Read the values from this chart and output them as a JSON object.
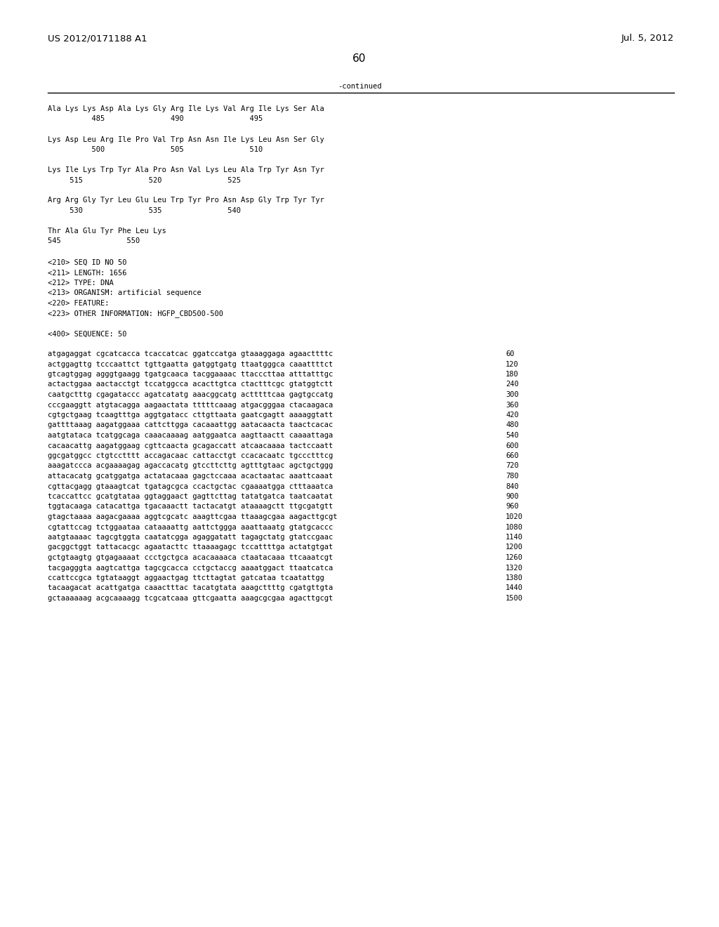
{
  "header_left": "US 2012/0171188 A1",
  "header_right": "Jul. 5, 2012",
  "page_number": "60",
  "continued_label": "-continued",
  "background_color": "#ffffff",
  "text_color": "#000000",
  "protein_lines": [
    "Ala Lys Lys Asp Ala Lys Gly Arg Ile Lys Val Arg Ile Lys Ser Ala",
    "          485               490               495",
    "",
    "Lys Asp Leu Arg Ile Pro Val Trp Asn Asn Ile Lys Leu Asn Ser Gly",
    "          500               505               510",
    "",
    "Lys Ile Lys Trp Tyr Ala Pro Asn Val Lys Leu Ala Trp Tyr Asn Tyr",
    "     515               520               525",
    "",
    "Arg Arg Gly Tyr Leu Glu Leu Trp Tyr Pro Asn Asp Gly Trp Tyr Tyr",
    "     530               535               540",
    "",
    "Thr Ala Glu Tyr Phe Leu Lys",
    "545               550"
  ],
  "seq_info_lines": [
    "<210> SEQ ID NO 50",
    "<211> LENGTH: 1656",
    "<212> TYPE: DNA",
    "<213> ORGANISM: artificial sequence",
    "<220> FEATURE:",
    "<223> OTHER INFORMATION: HGFP_CBD500-500",
    "",
    "<400> SEQUENCE: 50"
  ],
  "dna_lines": [
    [
      "atgagaggat cgcatcacca tcaccatcac ggatccatga gtaaaggaga agaacttttc",
      "60"
    ],
    [
      "actggagttg tcccaattct tgttgaatta gatggtgatg ttaatgggca caaattttct",
      "120"
    ],
    [
      "gtcagtggag agggtgaagg tgatgcaaca tacggaaaac ttacccttaa atttatttgc",
      "180"
    ],
    [
      "actactggaa aactacctgt tccatggcca acacttgtca ctactttcgc gtatggtctt",
      "240"
    ],
    [
      "caatgctttg cgagataccc agatcatatg aaacggcatg actttttcaa gagtgccatg",
      "300"
    ],
    [
      "cccgaaggtt atgtacagga aagaactata tttttcaaag atgacgggaa ctacaagaca",
      "360"
    ],
    [
      "cgtgctgaag tcaagtttga aggtgatacc cttgttaata gaatcgagtt aaaaggtatt",
      "420"
    ],
    [
      "gattttaaag aagatggaaa cattcttgga cacaaattgg aatacaacta taactcacac",
      "480"
    ],
    [
      "aatgtataca tcatggcaga caaacaaaag aatggaatca aagttaactt caaaattaga",
      "540"
    ],
    [
      "cacaacattg aagatggaag cgttcaacta gcagaccatt atcaacaaaa tactccaatt",
      "600"
    ],
    [
      "ggcgatggcc ctgtcctttt accagacaac cattacctgt ccacacaatc tgccctttcg",
      "660"
    ],
    [
      "aaagatccca acgaaaagag agaccacatg gtccttcttg agtttgtaac agctgctggg",
      "720"
    ],
    [
      "attacacatg gcatggatga actatacaaa gagctccaaa acactaatac aaattcaaat",
      "780"
    ],
    [
      "cgttacgagg gtaaagtcat tgatagcgca ccactgctac cgaaaatgga ctttaaatca",
      "840"
    ],
    [
      "tcaccattcc gcatgtataa ggtaggaact gagttcttag tatatgatca taatcaatat",
      "900"
    ],
    [
      "tggtacaaga catacattga tgacaaactt tactacatgt ataaaagctt ttgcgatgtt",
      "960"
    ],
    [
      "gtagctaaaa aagacgaaaa aggtcgcatc aaagttcgaa ttaaagcgaa aagacttgcgt",
      "1020"
    ],
    [
      "cgtattccag tctggaataa cataaaattg aattctggga aaattaaatg gtatgcaccc",
      "1080"
    ],
    [
      "aatgtaaaac tagcgtggta caatatcgga agaggatatt tagagctatg gtatccgaac",
      "1140"
    ],
    [
      "gacggctggt tattacacgc agaatacttc ttaaaagagc tccattttga actatgtgat",
      "1200"
    ],
    [
      "gctgtaagtg gtgagaaaat ccctgctgca acacaaaaca ctaatacaaa ttcaaatcgt",
      "1260"
    ],
    [
      "tacgagggta aagtcattga tagcgcacca cctgctaccg aaaatggact ttaatcatca",
      "1320"
    ],
    [
      "ccattccgca tgtataaggt aggaactgag ttcttagtat gatcataa tcaatattgg",
      "1380"
    ],
    [
      "tacaagacat acattgatga caaactttac tacatgtata aaagcttttg cgatgttgta",
      "1440"
    ],
    [
      "gctaaaaaag acgcaaaagg tcgcatcaaa gttcgaatta aaagcgcgaa agacttgcgt",
      "1500"
    ]
  ]
}
